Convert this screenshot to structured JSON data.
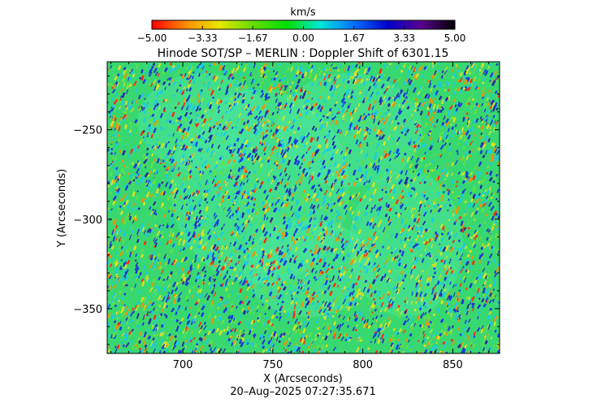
{
  "chart_data": {
    "type": "heatmap",
    "title": "Hinode SOT/SP – MERLIN : Doppler Shift of 6301.15",
    "xlabel": "X (Arcseconds)",
    "ylabel": "Y (Arcseconds)",
    "xlim": [
      658,
      876
    ],
    "ylim": [
      -375,
      -212
    ],
    "x_ticks": [
      {
        "value": 700,
        "label": "700"
      },
      {
        "value": 750,
        "label": "750"
      },
      {
        "value": 800,
        "label": "800"
      },
      {
        "value": 850,
        "label": "850"
      }
    ],
    "y_ticks": [
      {
        "value": -250,
        "label": "−250"
      },
      {
        "value": -300,
        "label": "−300"
      },
      {
        "value": -350,
        "label": "−350"
      }
    ],
    "colorbar": {
      "label": "km/s",
      "range": [
        -5.0,
        5.0
      ],
      "ticks": [
        {
          "value": -5.0,
          "label": "−5.00"
        },
        {
          "value": -3.33,
          "label": "−3.33"
        },
        {
          "value": -1.67,
          "label": "−1.67"
        },
        {
          "value": 0.0,
          "label": "0.00"
        },
        {
          "value": 1.67,
          "label": "1.67"
        },
        {
          "value": 3.33,
          "label": "3.33"
        },
        {
          "value": 5.0,
          "label": "5.00"
        }
      ],
      "colormap_stops": [
        "#ff0000",
        "#ff8c00",
        "#e8e800",
        "#66dd00",
        "#00e000",
        "#00e8d8",
        "#0070ff",
        "#0000cc",
        "#5a0090",
        "#000000"
      ]
    },
    "map_colors": {
      "background": "#38d870",
      "patch_light": "#4de8a8",
      "speckle": [
        "#1ec8e8",
        "#1a3cd8",
        "#2828a0",
        "#e0e020",
        "#ff8c00",
        "#ff2a10",
        "#66e040"
      ]
    }
  },
  "footer": {
    "timestamp": "20–Aug–2025 07:27:35.671"
  }
}
